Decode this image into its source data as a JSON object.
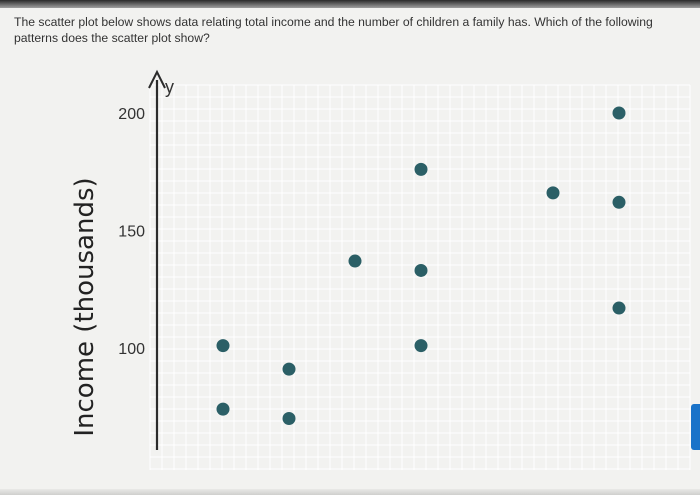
{
  "question": {
    "text": "The scatter plot below shows data relating total income and the number of children a family has. Which of the following patterns does the scatter plot show?"
  },
  "chart_data": {
    "type": "scatter",
    "title": "",
    "xlabel": "",
    "ylabel": "Income (thousands)",
    "y_axis_letter": "y",
    "yticks": [
      100,
      150,
      200
    ],
    "ylim": [
      60,
      200
    ],
    "xlim": [
      -0.5,
      7.3
    ],
    "grid": true,
    "points": [
      {
        "x": 1,
        "y": 101
      },
      {
        "x": 1,
        "y": 74
      },
      {
        "x": 2,
        "y": 91
      },
      {
        "x": 2,
        "y": 70
      },
      {
        "x": 3,
        "y": 137
      },
      {
        "x": 4,
        "y": 101
      },
      {
        "x": 4,
        "y": 133
      },
      {
        "x": 4,
        "y": 176
      },
      {
        "x": 6,
        "y": 166
      },
      {
        "x": 7,
        "y": 200
      },
      {
        "x": 7,
        "y": 162
      },
      {
        "x": 7,
        "y": 117
      }
    ],
    "colors": {
      "point": "#2b5f66",
      "axis": "#2b2b2b",
      "grid": "#ffffff",
      "text": "#333333"
    }
  }
}
